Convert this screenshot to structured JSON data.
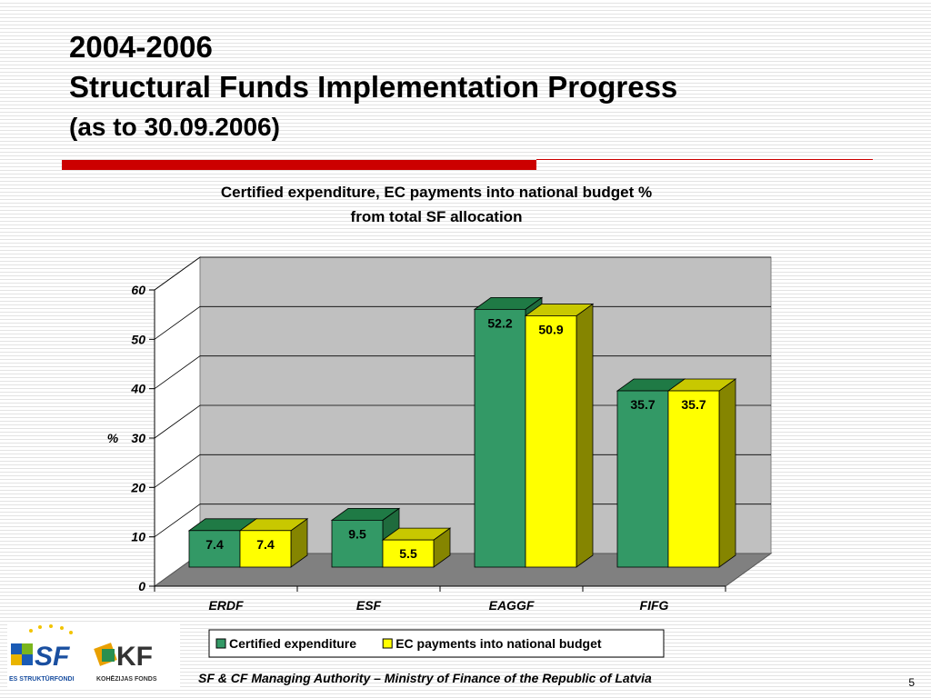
{
  "slide": {
    "title_line1": "2004-2006",
    "title_line2": "Structural Funds Implementation Progress",
    "title_line3": "(as to 30.09.2006)",
    "footer": "SF & CF Managing Authority –  Ministry of Finance of the Republic of Latvia",
    "page_number": "5",
    "logo": {
      "sf_text": "SF",
      "kf_text": "KF",
      "sf_caption": "ES STRUKTŪRFONDI",
      "kf_caption": "KOHĒZIJAS FONDS"
    }
  },
  "chart_data": {
    "type": "bar",
    "title_line1": "Certified expenditure, EC payments into national budget %",
    "title_line2": "from total SF allocation",
    "ylabel": "%",
    "xlabel": "",
    "categories": [
      "ERDF",
      "ESF",
      "EAGGF",
      "FIFG"
    ],
    "series": [
      {
        "name": "Certified expenditure",
        "values": [
          7.4,
          9.5,
          52.2,
          35.7
        ],
        "color": "#339966",
        "top_color": "#1f7a45",
        "side_color": "#1f6b3d"
      },
      {
        "name": "EC payments into national budget",
        "values": [
          7.4,
          5.5,
          50.9,
          35.7
        ],
        "color": "#ffff00",
        "top_color": "#c8c800",
        "side_color": "#858500"
      }
    ],
    "ylim": [
      0,
      60
    ],
    "yticks": [
      0,
      10,
      20,
      30,
      40,
      50,
      60
    ],
    "grid": true,
    "legend_position": "bottom",
    "three_d": true
  }
}
